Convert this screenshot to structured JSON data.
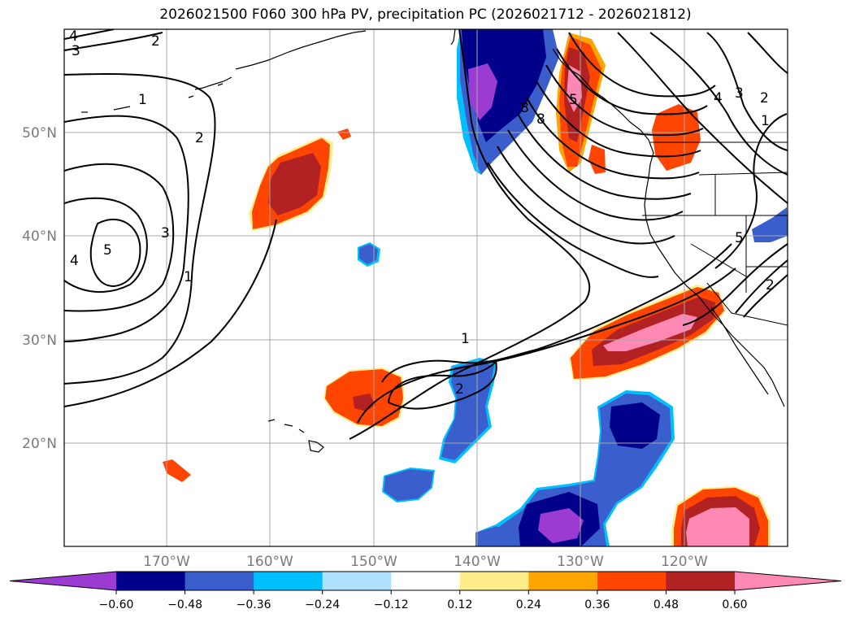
{
  "title": "2026021500 F060 300 hPa PV, precipitation PC (2026021712 - 2026021812)",
  "latitude_labels": [
    "50°N",
    "40°N",
    "30°N",
    "20°N"
  ],
  "longitude_labels": [
    "170°W",
    "160°W",
    "150°W",
    "140°W",
    "130°W",
    "120°W"
  ],
  "colorbar": {
    "tick_labels": [
      "−0.60",
      "−0.48",
      "−0.36",
      "−0.24",
      "−0.12",
      "0.12",
      "0.24",
      "0.36",
      "0.48",
      "0.60"
    ],
    "colors": [
      "#9b3bd1",
      "#00008b",
      "#3a5fcd",
      "#00bfff",
      "#b0e2ff",
      "#ffffff",
      "#ffec8b",
      "#ffa500",
      "#ff4500",
      "#b22222",
      "#ff88b4"
    ]
  },
  "contour_labels": [
    "1",
    "2",
    "3",
    "4",
    "5",
    "8"
  ],
  "map_features": [
    "coastlines",
    "state-borders",
    "pv-contours",
    "precipitation-fill",
    "graticule"
  ]
}
